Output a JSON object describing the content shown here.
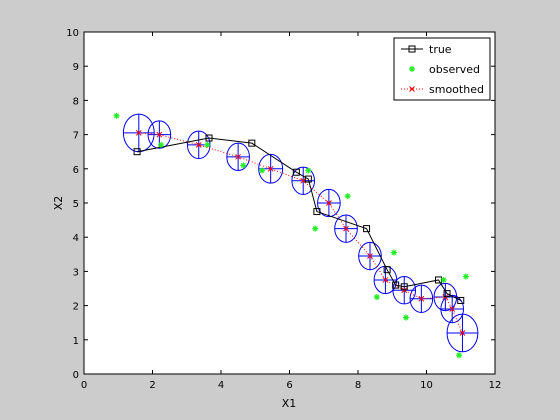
{
  "chart_data": {
    "type": "scatter",
    "title": "",
    "xlabel": "X1",
    "ylabel": "X2",
    "xlim": [
      0,
      12
    ],
    "ylim": [
      0,
      10
    ],
    "xticks": [
      "0",
      "2",
      "4",
      "6",
      "8",
      "10",
      "12"
    ],
    "yticks": [
      "0",
      "1",
      "2",
      "3",
      "4",
      "5",
      "6",
      "7",
      "8",
      "9",
      "10"
    ],
    "grid": false,
    "legend_position": "top-right",
    "colors": {
      "true": "#000000",
      "observed": "#22ee22",
      "smoothed": "#ff0000",
      "ellipse": "#0000ff"
    },
    "series": [
      {
        "name": "true",
        "style": "line-with-square-markers",
        "x": [
          1.55,
          3.65,
          4.9,
          6.2,
          6.55,
          6.8,
          8.25,
          8.85,
          9.1,
          9.35,
          10.35,
          10.6,
          11.0
        ],
        "y": [
          6.5,
          6.9,
          6.75,
          5.9,
          5.7,
          4.75,
          4.25,
          3.05,
          2.6,
          2.55,
          2.75,
          2.35,
          2.15
        ]
      },
      {
        "name": "observed",
        "style": "asterisk-markers",
        "x": [
          0.95,
          2.25,
          3.6,
          4.65,
          5.2,
          6.55,
          6.75,
          7.7,
          8.55,
          9.05,
          9.4,
          10.5,
          10.95,
          11.15
        ],
        "y": [
          7.55,
          6.7,
          6.7,
          6.1,
          5.95,
          5.95,
          4.25,
          5.2,
          2.25,
          3.55,
          1.65,
          2.75,
          0.55,
          2.85
        ]
      },
      {
        "name": "smoothed",
        "style": "dotted-line-with-x-markers",
        "x": [
          1.6,
          2.2,
          3.35,
          4.5,
          5.45,
          6.4,
          7.15,
          7.65,
          8.35,
          8.8,
          9.35,
          9.85,
          10.55,
          10.75,
          11.05
        ],
        "y": [
          7.05,
          7.0,
          6.7,
          6.35,
          6.0,
          5.65,
          5.0,
          4.25,
          3.45,
          2.75,
          2.45,
          2.2,
          2.25,
          1.9,
          1.2
        ]
      }
    ],
    "uncertainty_ellipses": {
      "center_series": "smoothed",
      "rx": [
        0.45,
        0.33,
        0.33,
        0.33,
        0.35,
        0.33,
        0.33,
        0.33,
        0.33,
        0.33,
        0.33,
        0.33,
        0.33,
        0.33,
        0.45
      ],
      "ry": [
        0.55,
        0.4,
        0.4,
        0.4,
        0.42,
        0.4,
        0.4,
        0.4,
        0.4,
        0.4,
        0.4,
        0.4,
        0.4,
        0.4,
        0.55
      ]
    }
  }
}
